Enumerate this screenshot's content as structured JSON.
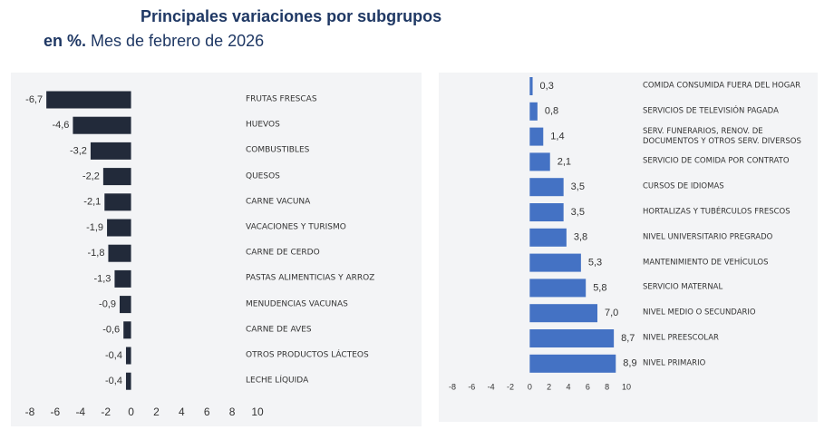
{
  "title": "Principales variaciones por subgrupos",
  "subtitle": [
    "en %.",
    "Mes de febrero de 2026"
  ],
  "chart_data": [
    {
      "type": "hbar",
      "color": "#222a3a",
      "categories": [
        "FRUTAS FRESCAS",
        "HUEVOS",
        "COMBUSTIBLES",
        "QUESOS",
        "CARNE VACUNA",
        "VACACIONES Y TURISMO",
        "CARNE DE CERDO",
        "PASTAS ALIMENTICIAS Y ARROZ",
        "MENUDENCIAS VACUNAS",
        "CARNE DE AVES",
        "OTROS PRODUCTOS LÁCTEOS",
        "LECHE LÍQUIDA"
      ],
      "values": [
        -6.7,
        -4.6,
        -3.2,
        -2.2,
        -2.1,
        -1.9,
        -1.8,
        -1.3,
        -0.9,
        -0.6,
        -0.4,
        -0.4
      ],
      "value_labels": [
        "-6,7",
        "-4,6",
        "-3,2",
        "-2,2",
        "-2,1",
        "-1,9",
        "-1,8",
        "-1,3",
        "-0,9",
        "-0,6",
        "-0,4",
        "-0,4"
      ],
      "xlim": [
        -8,
        10
      ],
      "xticks": [
        -8,
        -6,
        -4,
        -2,
        0,
        2,
        4,
        6,
        8,
        10
      ]
    },
    {
      "type": "hbar",
      "color": "#4472c4",
      "categories": [
        "COMIDA CONSUMIDA FUERA DEL HOGAR",
        "SERVICIOS DE TELEVISIÓN PAGADA",
        "SERV. FUNERARIOS, RENOV. DE DOCUMENTOS Y OTROS SERV. DIVERSOS",
        "SERVICIO DE COMIDA POR CONTRATO",
        "CURSOS DE IDIOMAS",
        "HORTALIZAS Y TUBÉRCULOS FRESCOS",
        "NIVEL UNIVERSITARIO PREGRADO",
        "MANTENIMIENTO DE VEHÍCULOS",
        "SERVICIO MATERNAL",
        "NIVEL MEDIO O SECUNDARIO",
        "NIVEL PREESCOLAR",
        "NIVEL PRIMARIO"
      ],
      "values": [
        0.3,
        0.8,
        1.4,
        2.1,
        3.5,
        3.5,
        3.8,
        5.3,
        5.8,
        7.0,
        8.7,
        8.9
      ],
      "value_labels": [
        "0,3",
        "0,8",
        "1,4",
        "2,1",
        "3,5",
        "3,5",
        "3,8",
        "5,3",
        "5,8",
        "7,0",
        "8,7",
        "8,9"
      ],
      "xlim": [
        -8,
        10
      ],
      "xticks": [
        -8,
        -6,
        -4,
        -2,
        0,
        2,
        4,
        6,
        8,
        10
      ]
    }
  ]
}
